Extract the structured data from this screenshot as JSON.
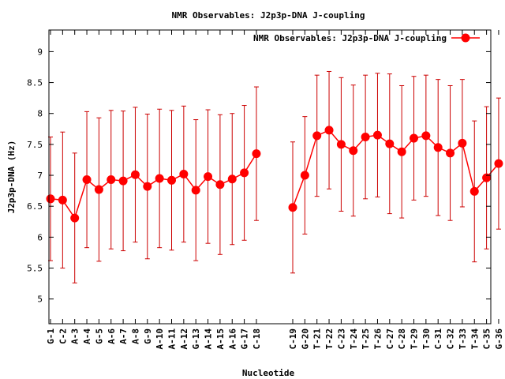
{
  "chart_data": {
    "type": "line",
    "title": "NMR Observables: J2p3p-DNA J-coupling",
    "xlabel": "Nucleotide",
    "ylabel": "J2p3p-DNA (Hz)",
    "ylim": [
      4.6,
      9.35
    ],
    "yticks": [
      5,
      5.5,
      6,
      6.5,
      7,
      7.5,
      8,
      8.5,
      9
    ],
    "ytick_labels": [
      "5",
      "5.5",
      "6",
      "6.5",
      "7",
      "7.5",
      "8",
      "8.5",
      "9"
    ],
    "grid": false,
    "legend_position": "top-right",
    "series": [
      {
        "name": "NMR Observables: J2p3p-DNA J-coupling",
        "color": "#ff0000",
        "errorbar_color": "#cc0000",
        "marker": "circle",
        "segments": [
          {
            "categories": [
              "G-1",
              "C-2",
              "A-3",
              "A-4",
              "G-5",
              "A-6",
              "A-7",
              "A-8",
              "G-9",
              "A-10",
              "A-11",
              "A-12",
              "G-13",
              "A-14",
              "A-15",
              "A-16",
              "G-17",
              "C-18"
            ],
            "values": [
              6.62,
              6.6,
              6.31,
              6.93,
              6.77,
              6.93,
              6.91,
              7.01,
              6.82,
              6.95,
              6.92,
              7.02,
              6.76,
              6.98,
              6.85,
              6.94,
              7.04,
              7.35
            ],
            "errors": [
              1.0,
              1.1,
              1.05,
              1.1,
              1.16,
              1.12,
              1.13,
              1.09,
              1.17,
              1.12,
              1.13,
              1.1,
              1.14,
              1.08,
              1.13,
              1.06,
              1.09,
              1.08
            ]
          },
          {
            "categories": [
              "C-19",
              "G-20",
              "T-21",
              "T-22",
              "C-23",
              "T-24",
              "T-25",
              "T-26",
              "C-27",
              "C-28",
              "T-29",
              "T-30",
              "C-31",
              "C-32",
              "T-33",
              "T-34",
              "C-35",
              "G-36"
            ],
            "values": [
              6.48,
              7.0,
              7.64,
              7.73,
              7.5,
              7.4,
              7.62,
              7.65,
              7.51,
              7.38,
              7.6,
              7.64,
              7.45,
              7.36,
              7.52,
              6.74,
              6.96,
              7.19
            ],
            "errors": [
              1.06,
              0.95,
              0.98,
              0.95,
              1.08,
              1.06,
              1.0,
              1.0,
              1.13,
              1.07,
              1.0,
              0.98,
              1.1,
              1.09,
              1.03,
              1.14,
              1.15,
              1.06
            ]
          }
        ]
      }
    ]
  }
}
